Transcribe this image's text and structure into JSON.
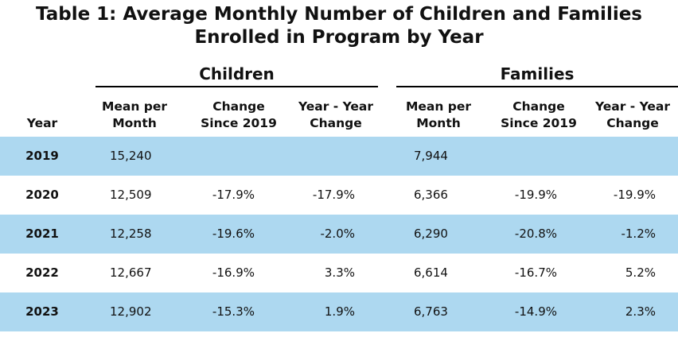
{
  "title": {
    "line1": "Table 1: Average Monthly Number of Children and Families",
    "line2": "Enrolled in Program by Year"
  },
  "groups": {
    "children": "Children",
    "families": "Families"
  },
  "columns": {
    "year": "Year",
    "mean": [
      "Mean per",
      "Month"
    ],
    "change_since": [
      "Change",
      "Since 2019"
    ],
    "yoy": [
      "Year - Year",
      "Change"
    ]
  },
  "colors": {
    "row_shade": "#add8f0"
  },
  "chart_data": {
    "type": "table",
    "title": "Table 1: Average Monthly Number of Children and Families Enrolled in Program by Year",
    "headers": [
      "Year",
      "Children Mean per Month",
      "Children Change Since 2019",
      "Children Year - Year Change",
      "Families Mean per Month",
      "Families Change Since 2019",
      "Families Year - Year Change"
    ],
    "rows": [
      {
        "year": "2019",
        "children_mean": "15,240",
        "children_change": "",
        "children_yoy": "",
        "families_mean": "7,944",
        "families_change": "",
        "families_yoy": ""
      },
      {
        "year": "2020",
        "children_mean": "12,509",
        "children_change": "-17.9%",
        "children_yoy": "-17.9%",
        "families_mean": "6,366",
        "families_change": "-19.9%",
        "families_yoy": "-19.9%"
      },
      {
        "year": "2021",
        "children_mean": "12,258",
        "children_change": "-19.6%",
        "children_yoy": "-2.0%",
        "families_mean": "6,290",
        "families_change": "-20.8%",
        "families_yoy": "-1.2%"
      },
      {
        "year": "2022",
        "children_mean": "12,667",
        "children_change": "-16.9%",
        "children_yoy": "3.3%",
        "families_mean": "6,614",
        "families_change": "-16.7%",
        "families_yoy": "5.2%"
      },
      {
        "year": "2023",
        "children_mean": "12,902",
        "children_change": "-15.3%",
        "children_yoy": "1.9%",
        "families_mean": "6,763",
        "families_change": "-14.9%",
        "families_yoy": "2.3%"
      }
    ]
  }
}
